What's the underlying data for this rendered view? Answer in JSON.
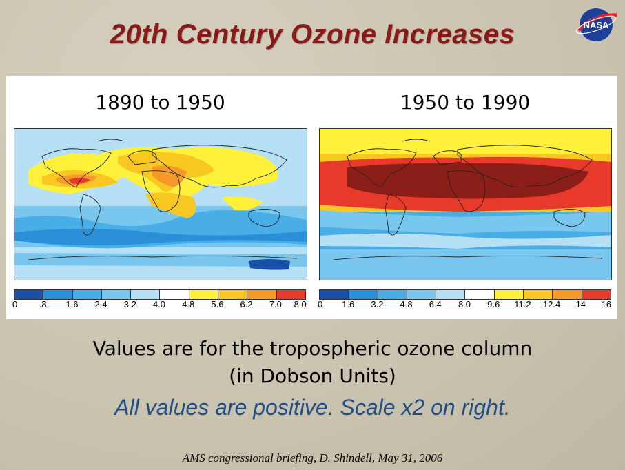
{
  "slide": {
    "title": "20th Century Ozone Increases",
    "logo_text": "NASA",
    "caption_line1": "Values are for the tropospheric ozone column",
    "caption_line2": "(in Dobson Units)",
    "caption_line3": "All values are positive.  Scale x2 on right.",
    "footer": "AMS congressional briefing, D. Shindell, May 31, 2006"
  },
  "maps": {
    "left": {
      "title": "1890 to 1950",
      "colorbar_ticks": [
        "0",
        ".8",
        "1.6",
        "2.4",
        "3.2",
        "4.0",
        "4.8",
        "5.6",
        "6.2",
        "7.0",
        "8.0"
      ],
      "colors": [
        "#1a4fa8",
        "#2a8fd6",
        "#4aaee6",
        "#79c7ee",
        "#b6e0f5",
        "#ffffff",
        "#fff13a",
        "#f9c722",
        "#f59a2a",
        "#e83a2a"
      ]
    },
    "right": {
      "title": "1950 to 1990",
      "colorbar_ticks": [
        "0",
        "1.6",
        "3.2",
        "4.8",
        "6.4",
        "8.0",
        "9.6",
        "11.2",
        "12.4",
        "14",
        "16"
      ],
      "colors": [
        "#1a4fa8",
        "#2a8fd6",
        "#4aaee6",
        "#79c7ee",
        "#b6e0f5",
        "#ffffff",
        "#fff13a",
        "#f9c722",
        "#f59a2a",
        "#e83a2a"
      ]
    }
  }
}
